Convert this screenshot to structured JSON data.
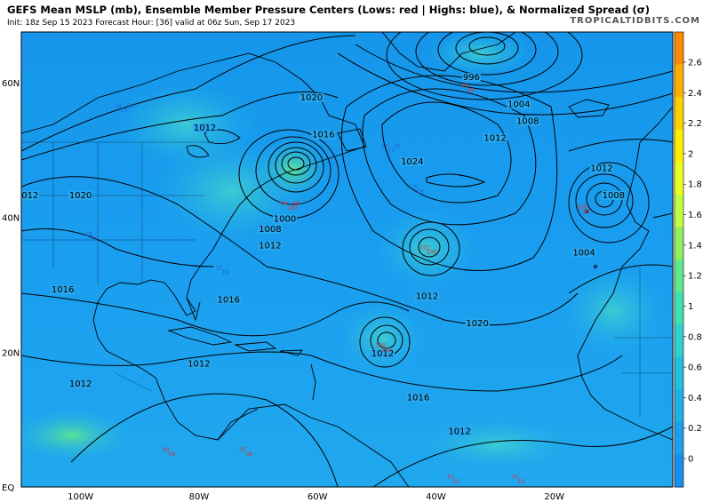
{
  "header": {
    "title": "GEFS Mean MSLP (mb), Ensemble Member Pressure Centers (Lows: red | Highs: blue), & Normalized Spread (σ)",
    "subtitle": "Init: 18z Sep 15 2023   Forecast Hour: [36]   valid at 06z Sun, Sep 17 2023",
    "brand": "TROPICALTIDBITS.COM"
  },
  "axes": {
    "lat_labels": [
      "60N",
      "40N",
      "20N",
      "EQ"
    ],
    "lon_labels": [
      "100W",
      "80W",
      "60W",
      "40W",
      "20W"
    ]
  },
  "colorbar": {
    "ticks": [
      "2.6",
      "2.4",
      "2.2",
      "2",
      "1.8",
      "1.6",
      "1.4",
      "1.2",
      "1",
      "0.8",
      "0.6",
      "0.4",
      "0.2",
      "0"
    ],
    "colors": [
      "#ff8c00",
      "#ffb000",
      "#ffd000",
      "#ffee00",
      "#e8ff20",
      "#c0ff40",
      "#90f060",
      "#60e890",
      "#40e0b0",
      "#30d0d0",
      "#20c0e0",
      "#20b0e8",
      "#1aa0ee",
      "#1590f0"
    ]
  },
  "isobar_labels": [
    {
      "text": "1020",
      "lat": 57.5,
      "lon": -61
    },
    {
      "text": "1016",
      "lat": 52,
      "lon": -59
    },
    {
      "text": "1012",
      "lat": 53,
      "lon": -79
    },
    {
      "text": "1020",
      "lat": 43,
      "lon": -100
    },
    {
      "text": "1012",
      "lat": 43,
      "lon": -109
    },
    {
      "text": "1000",
      "lat": 39.5,
      "lon": -65.5
    },
    {
      "text": "1008",
      "lat": 38,
      "lon": -68
    },
    {
      "text": "1012",
      "lat": 35.5,
      "lon": -68
    },
    {
      "text": "1016",
      "lat": 29,
      "lon": -103
    },
    {
      "text": "1016",
      "lat": 27.5,
      "lon": -75
    },
    {
      "text": "1012",
      "lat": 18,
      "lon": -80
    },
    {
      "text": "1012",
      "lat": 15,
      "lon": -100
    },
    {
      "text": "1024",
      "lat": 48,
      "lon": -44
    },
    {
      "text": "996",
      "lat": 60.5,
      "lon": -34
    },
    {
      "text": "1004",
      "lat": 56.5,
      "lon": -26
    },
    {
      "text": "1008",
      "lat": 54,
      "lon": -24.5
    },
    {
      "text": "1012",
      "lat": 51.5,
      "lon": -30
    },
    {
      "text": "1012",
      "lat": 47,
      "lon": -12
    },
    {
      "text": "1008",
      "lat": 43,
      "lon": -10
    },
    {
      "text": "1004",
      "lat": 34.5,
      "lon": -15
    },
    {
      "text": "1012",
      "lat": 28,
      "lon": -41.5
    },
    {
      "text": "1020",
      "lat": 24,
      "lon": -33
    },
    {
      "text": "1012",
      "lat": 19.5,
      "lon": -49
    },
    {
      "text": "1016",
      "lat": 13,
      "lon": -43
    },
    {
      "text": "1012",
      "lat": 8,
      "lon": -36
    }
  ],
  "lows": [
    {
      "lat": 41.5,
      "lon": -65,
      "values": [
        "99",
        "100",
        "98"
      ]
    },
    {
      "lat": 59,
      "lon": -34.5,
      "values": [
        "99",
        "98"
      ]
    },
    {
      "lat": 35,
      "lon": -41.5,
      "values": [
        "101",
        "100"
      ]
    },
    {
      "lat": 41,
      "lon": -15,
      "values": [
        "100",
        "99"
      ]
    },
    {
      "lat": 20.5,
      "lon": -49,
      "values": [
        "100",
        "101"
      ]
    },
    {
      "lat": 5,
      "lon": -72,
      "values": [
        "07",
        "08"
      ]
    },
    {
      "lat": 5,
      "lon": -85,
      "values": [
        "09",
        "09"
      ]
    },
    {
      "lat": 1,
      "lon": -37,
      "values": [
        "10",
        "10"
      ]
    },
    {
      "lat": 1,
      "lon": -26,
      "values": [
        "10",
        "10"
      ]
    }
  ],
  "highs": [
    {
      "lat": 56,
      "lon": -93,
      "values": [
        "22",
        "24",
        "23"
      ]
    },
    {
      "lat": 50,
      "lon": -48,
      "values": [
        "26",
        "27",
        "25"
      ]
    },
    {
      "lat": 44,
      "lon": -43,
      "values": [
        "25",
        "26"
      ]
    },
    {
      "lat": 32,
      "lon": -76,
      "values": [
        "17",
        "16"
      ]
    },
    {
      "lat": 37,
      "lon": -98,
      "values": [
        "18",
        "19"
      ]
    }
  ]
}
